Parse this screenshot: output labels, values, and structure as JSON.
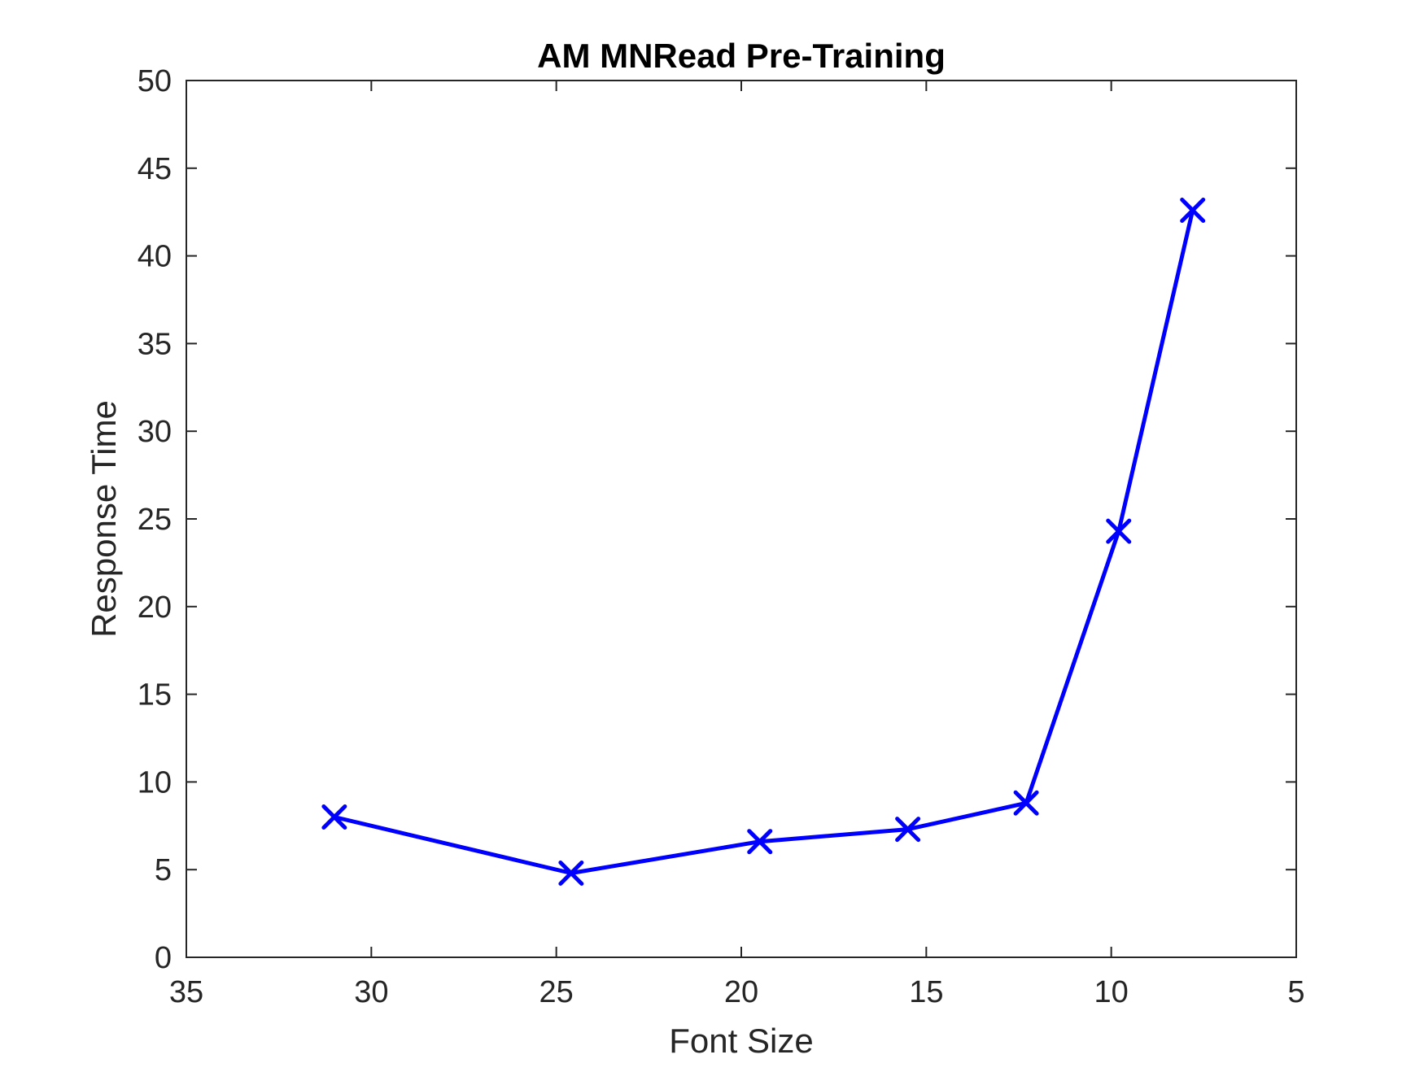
{
  "chart_data": {
    "type": "line",
    "title": "AM MNRead Pre-Training",
    "xlabel": "Font Size",
    "ylabel": "Response Time",
    "xlim": [
      35,
      5
    ],
    "x_reversed": true,
    "ylim": [
      0,
      50
    ],
    "xticks": [
      35,
      30,
      25,
      20,
      15,
      10,
      5
    ],
    "yticks": [
      0,
      5,
      10,
      15,
      20,
      25,
      30,
      35,
      40,
      45,
      50
    ],
    "grid": false,
    "legend": "none",
    "series": [
      {
        "color": "#0000ff",
        "marker": "x",
        "x": [
          31,
          24.6,
          19.5,
          15.5,
          12.3,
          9.8,
          7.8
        ],
        "y": [
          8.0,
          4.8,
          6.6,
          7.3,
          8.8,
          24.3,
          42.6
        ]
      }
    ]
  }
}
